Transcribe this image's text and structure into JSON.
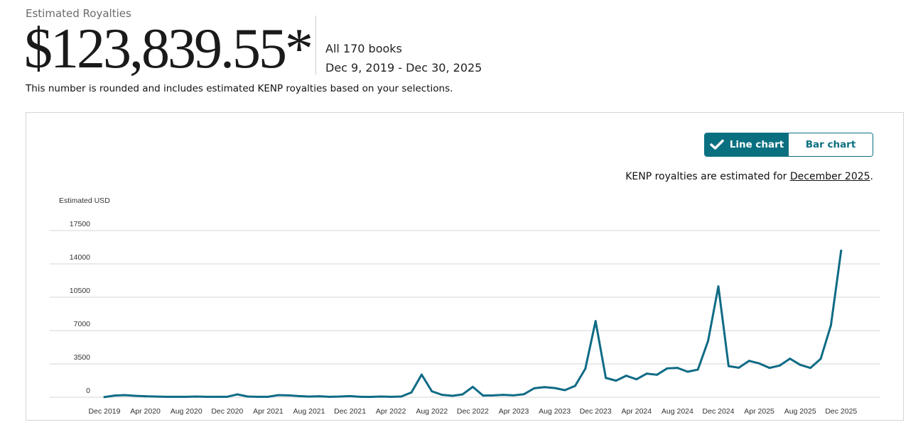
{
  "header": {
    "label": "Estimated Royalties",
    "amount": "$123,839.55*",
    "books": "All 170 books",
    "date_range": "Dec 9, 2019 - Dec 30, 2025",
    "note": "This number is rounded and includes estimated KENP royalties based on your selections."
  },
  "toggle": {
    "line_label": "Line chart",
    "bar_label": "Bar chart",
    "selected": "line",
    "check_icon": "check-icon"
  },
  "kenp_note": {
    "prefix": "KENP royalties are estimated for ",
    "link": "December 2025",
    "suffix": "."
  },
  "colors": {
    "accent": "#0a7080",
    "line": "#0f6b85",
    "grid": "#e3e3e3"
  },
  "chart_data": {
    "type": "line",
    "ylabel": "Estimated USD",
    "xlabel": "",
    "ylim": [
      0,
      17500
    ],
    "yticks": [
      0,
      3500,
      7000,
      10500,
      14000,
      17500
    ],
    "grid": true,
    "xtick_labels": [
      "Dec 2019",
      "Apr 2020",
      "Aug 2020",
      "Dec 2020",
      "Apr 2021",
      "Aug 2021",
      "Dec 2021",
      "Apr 2022",
      "Aug 2022",
      "Dec 2022",
      "Apr 2023",
      "Aug 2023",
      "Dec 2023",
      "Apr 2024",
      "Aug 2024",
      "Dec 2024",
      "Apr 2025",
      "Aug 2025",
      "Dec 2025"
    ],
    "x_start": "Dec 2019",
    "x_end": "Dec 2025",
    "x_interval": "monthly",
    "values": [
      20,
      175,
      225,
      150,
      100,
      75,
      50,
      50,
      50,
      75,
      50,
      50,
      50,
      300,
      75,
      50,
      50,
      225,
      200,
      125,
      75,
      100,
      50,
      75,
      125,
      50,
      40,
      75,
      50,
      75,
      500,
      2375,
      625,
      250,
      150,
      300,
      1090,
      175,
      200,
      250,
      200,
      320,
      940,
      1065,
      970,
      745,
      1190,
      3000,
      7990,
      2030,
      1740,
      2260,
      1885,
      2480,
      2360,
      3030,
      3080,
      2680,
      2900,
      5930,
      11640,
      3270,
      3100,
      3820,
      3550,
      3080,
      3330,
      4050,
      3400,
      3080,
      4030,
      7550,
      15400
    ]
  }
}
